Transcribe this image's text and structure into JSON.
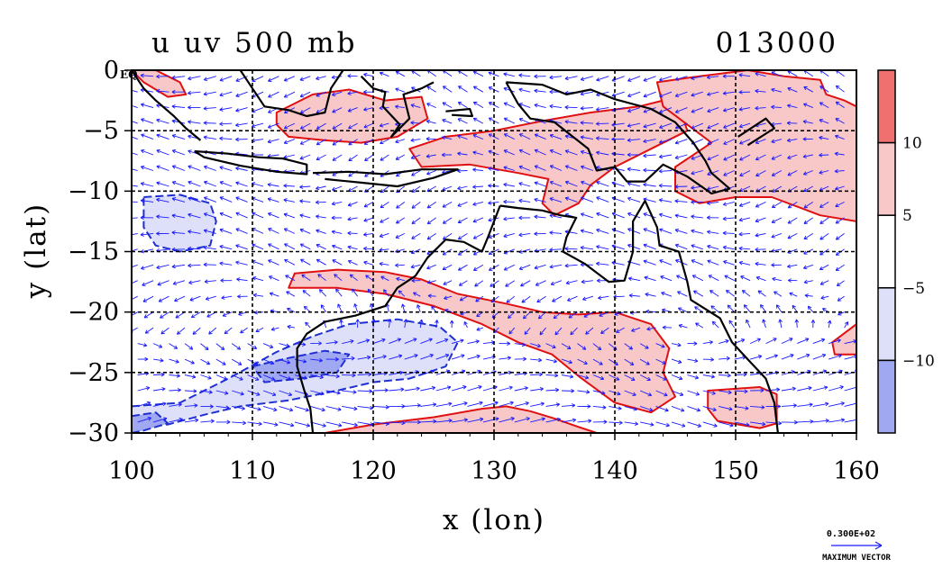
{
  "chart_data": {
    "type": "heatmap",
    "title_left": "u uv 500 mb",
    "title_right": "013000",
    "xlabel": "x (lon)",
    "ylabel": "y (lat)",
    "xlim": [
      100,
      160
    ],
    "ylim": [
      -30,
      0
    ],
    "x_ticks": [
      100,
      110,
      120,
      130,
      140,
      150,
      160
    ],
    "x_tick_labels": [
      "100",
      "110",
      "120",
      "130",
      "140",
      "150",
      "160"
    ],
    "y_ticks": [
      0,
      -5,
      -10,
      -15,
      -20,
      -25,
      -30
    ],
    "y_tick_labels": [
      "0",
      "−5",
      "−10",
      "−15",
      "−20",
      "−25",
      "−30"
    ],
    "eq_label": "EQ",
    "grid": true,
    "colorbar": {
      "position": "right",
      "levels": [
        {
          "color": "#f07070",
          "from": 10,
          "to": 15
        },
        {
          "color": "#f8c8c8",
          "from": 5,
          "to": 10
        },
        {
          "color": "#ffffff",
          "from": -5,
          "to": 5
        },
        {
          "color": "#dde0f8",
          "from": -10,
          "to": -5
        },
        {
          "color": "#9fa8f0",
          "from": -15,
          "to": -10
        }
      ],
      "tick_values": [
        10,
        5,
        -5,
        -10
      ],
      "labels": [
        "10",
        "5",
        "−5",
        "−10"
      ]
    },
    "contour_colors": {
      "positive": "#e01010",
      "negative": "#2030d0",
      "coast": "#000000"
    },
    "vector_color": "#1a1aff",
    "max_vector": {
      "value_label": "0.300E+02",
      "caption": "MAXIMUM VECTOR"
    },
    "regions": [
      {
        "sign": "positive",
        "level": 1,
        "points": [
          [
            100,
            0
          ],
          [
            102,
            0
          ],
          [
            104,
            -1
          ],
          [
            104.5,
            -2
          ],
          [
            103,
            -2.2
          ],
          [
            102,
            -1.6
          ],
          [
            101,
            -1
          ]
        ]
      },
      {
        "sign": "positive",
        "level": 1,
        "points": [
          [
            112,
            -3.5
          ],
          [
            115,
            -2
          ],
          [
            118,
            -1.6
          ],
          [
            121,
            -2.5
          ],
          [
            124,
            -2.2
          ],
          [
            124.5,
            -4
          ],
          [
            122,
            -5.5
          ],
          [
            119,
            -6
          ],
          [
            116,
            -5.8
          ],
          [
            113,
            -5.5
          ],
          [
            112,
            -4.5
          ]
        ]
      },
      {
        "sign": "positive",
        "level": 1,
        "points": [
          [
            123,
            -6.5
          ],
          [
            126,
            -5.5
          ],
          [
            130,
            -5
          ],
          [
            134,
            -4.2
          ],
          [
            138,
            -3.5
          ],
          [
            142,
            -3
          ],
          [
            144,
            -2.5
          ],
          [
            145.5,
            -3.5
          ],
          [
            146,
            -5
          ],
          [
            143,
            -6.5
          ],
          [
            140,
            -8
          ],
          [
            138,
            -9.5
          ],
          [
            137,
            -11
          ],
          [
            135,
            -12
          ],
          [
            134,
            -11
          ],
          [
            134.5,
            -9
          ],
          [
            132,
            -8.5
          ],
          [
            128,
            -7.8
          ],
          [
            124,
            -8
          ]
        ]
      },
      {
        "sign": "positive",
        "level": 1,
        "points": [
          [
            143.5,
            -1
          ],
          [
            147,
            -0.5
          ],
          [
            151,
            0
          ],
          [
            154,
            -0.5
          ],
          [
            157,
            -0.8
          ],
          [
            157.5,
            -2
          ],
          [
            159,
            -2.5
          ],
          [
            160,
            -3
          ],
          [
            160,
            -12.5
          ],
          [
            157,
            -12
          ],
          [
            153,
            -10.5
          ],
          [
            150,
            -10.5
          ],
          [
            147,
            -11
          ],
          [
            145,
            -10
          ],
          [
            145,
            -8
          ],
          [
            148,
            -6
          ],
          [
            146,
            -4.5
          ],
          [
            144,
            -3
          ]
        ]
      },
      {
        "sign": "positive",
        "level": 1,
        "points": [
          [
            113.5,
            -16.8
          ],
          [
            117,
            -16.5
          ],
          [
            121,
            -16.7
          ],
          [
            124,
            -17.3
          ],
          [
            127,
            -18.5
          ],
          [
            131,
            -19.3
          ],
          [
            134,
            -20
          ],
          [
            137,
            -20.2
          ],
          [
            140,
            -20
          ],
          [
            143,
            -21
          ],
          [
            144.5,
            -23
          ],
          [
            144,
            -25
          ],
          [
            145,
            -27
          ],
          [
            143,
            -28.3
          ],
          [
            140,
            -27.5
          ],
          [
            137,
            -25.3
          ],
          [
            134.8,
            -23.5
          ],
          [
            132,
            -22.5
          ],
          [
            129,
            -21
          ],
          [
            125,
            -19.5
          ],
          [
            121,
            -18.5
          ],
          [
            117,
            -18
          ],
          [
            113,
            -18
          ]
        ]
      },
      {
        "sign": "positive",
        "level": 1,
        "points": [
          [
            116,
            -30
          ],
          [
            120,
            -29.3
          ],
          [
            125,
            -28.7
          ],
          [
            129,
            -28
          ],
          [
            131,
            -27.8
          ],
          [
            133,
            -28.2
          ],
          [
            135,
            -28.8
          ],
          [
            137,
            -29.5
          ],
          [
            138.5,
            -30
          ]
        ]
      },
      {
        "sign": "positive",
        "level": 1,
        "points": [
          [
            147.7,
            -26.5
          ],
          [
            152,
            -26.2
          ],
          [
            153.4,
            -26.8
          ],
          [
            153.4,
            -29.2
          ],
          [
            152,
            -29.6
          ],
          [
            148.5,
            -29
          ],
          [
            147.7,
            -28
          ]
        ]
      },
      {
        "sign": "positive",
        "level": 1,
        "points": [
          [
            158,
            -22.5
          ],
          [
            160,
            -21
          ],
          [
            160,
            -23.5
          ],
          [
            158.2,
            -23.5
          ]
        ]
      },
      {
        "sign": "negative",
        "level": 1,
        "points": [
          [
            101,
            -10.5
          ],
          [
            104,
            -10.3
          ],
          [
            106.5,
            -11
          ],
          [
            107,
            -12.5
          ],
          [
            106.5,
            -14.5
          ],
          [
            104,
            -15
          ],
          [
            102,
            -14.5
          ],
          [
            101,
            -13
          ]
        ]
      },
      {
        "sign": "negative",
        "level": 1,
        "points": [
          [
            100,
            -27.8
          ],
          [
            104,
            -27.5
          ],
          [
            108,
            -25.5
          ],
          [
            112,
            -23.3
          ],
          [
            115,
            -22
          ],
          [
            118,
            -21
          ],
          [
            122,
            -20.6
          ],
          [
            125.5,
            -21.2
          ],
          [
            127,
            -22.5
          ],
          [
            126,
            -24.5
          ],
          [
            123,
            -25.5
          ],
          [
            120,
            -25.8
          ],
          [
            117,
            -26.5
          ],
          [
            113,
            -27.3
          ],
          [
            109,
            -27.8
          ],
          [
            106,
            -28.5
          ],
          [
            103,
            -29.3
          ],
          [
            100,
            -29.5
          ]
        ]
      },
      {
        "sign": "negative",
        "level": 2,
        "points": [
          [
            110,
            -24.5
          ],
          [
            113,
            -23.8
          ],
          [
            116,
            -23.2
          ],
          [
            118,
            -23.5
          ],
          [
            117,
            -25
          ],
          [
            114,
            -25.5
          ],
          [
            111,
            -25.8
          ]
        ]
      },
      {
        "sign": "negative",
        "level": 2,
        "points": [
          [
            100,
            -28.6
          ],
          [
            102,
            -28.3
          ],
          [
            103,
            -29.2
          ],
          [
            101,
            -29.8
          ],
          [
            100,
            -30
          ]
        ]
      }
    ],
    "coastlines": [
      [
        [
          100,
          0
        ],
        [
          101,
          -1.5
        ],
        [
          102,
          -2.5
        ],
        [
          103.5,
          -3.8
        ],
        [
          104.5,
          -4.8
        ],
        [
          105.7,
          -5.8
        ]
      ],
      [
        [
          105.2,
          -6.7
        ],
        [
          108,
          -6.9
        ],
        [
          110.5,
          -7.2
        ],
        [
          112.5,
          -7.3
        ],
        [
          114.5,
          -7.8
        ],
        [
          114.5,
          -8.6
        ],
        [
          112,
          -8.4
        ],
        [
          109,
          -7.9
        ],
        [
          106,
          -7.2
        ],
        [
          105.2,
          -6.7
        ]
      ],
      [
        [
          115,
          -8.5
        ],
        [
          118,
          -8.4
        ],
        [
          121,
          -8.6
        ],
        [
          124,
          -8.2
        ],
        [
          127,
          -8.2
        ],
        [
          125,
          -8.9
        ],
        [
          122,
          -9.6
        ],
        [
          119,
          -9.3
        ],
        [
          116,
          -9
        ]
      ],
      [
        [
          109,
          0
        ],
        [
          110,
          -1.5
        ],
        [
          111,
          -3
        ],
        [
          113,
          -3.3
        ],
        [
          114.5,
          -3.8
        ],
        [
          116,
          -3.5
        ],
        [
          116.5,
          -1.5
        ],
        [
          117.5,
          0
        ]
      ],
      [
        [
          119,
          -0.5
        ],
        [
          120,
          -1.5
        ],
        [
          121,
          -1.8
        ],
        [
          120.8,
          -3
        ],
        [
          122.2,
          -4.5
        ],
        [
          121.5,
          -5.5
        ],
        [
          123,
          -4
        ],
        [
          122.5,
          -2
        ],
        [
          124,
          -1.5
        ],
        [
          125,
          -1
        ]
      ],
      [
        [
          126,
          -3.4
        ],
        [
          128,
          -3.2
        ],
        [
          128.2,
          -3.8
        ],
        [
          126.5,
          -3.7
        ]
      ],
      [
        [
          131,
          -1
        ],
        [
          134,
          -1.2
        ],
        [
          136,
          -2
        ],
        [
          138,
          -1.6
        ],
        [
          140,
          -2.4
        ],
        [
          143,
          -3.2
        ],
        [
          145,
          -4.3
        ],
        [
          146.5,
          -6
        ],
        [
          147.5,
          -7.5
        ],
        [
          148,
          -8.5
        ],
        [
          149.5,
          -9.8
        ],
        [
          148,
          -10.2
        ],
        [
          146,
          -8.8
        ],
        [
          144,
          -7.8
        ],
        [
          142.5,
          -9.2
        ],
        [
          141,
          -9.2
        ],
        [
          140,
          -8
        ],
        [
          138.5,
          -8.3
        ],
        [
          137.8,
          -6.5
        ],
        [
          135,
          -4.3
        ],
        [
          133,
          -4
        ],
        [
          132,
          -2.8
        ],
        [
          131,
          -1
        ]
      ],
      [
        [
          150.2,
          -5.5
        ],
        [
          152.5,
          -4
        ],
        [
          153.2,
          -4.8
        ],
        [
          151,
          -6.2
        ]
      ],
      [
        [
          130.5,
          -11.2
        ],
        [
          132,
          -11.4
        ],
        [
          134,
          -11.6
        ],
        [
          135.5,
          -12
        ],
        [
          136.8,
          -12.2
        ],
        [
          136,
          -13.8
        ],
        [
          135.7,
          -15
        ],
        [
          137.5,
          -16
        ],
        [
          139.5,
          -17.5
        ],
        [
          140.8,
          -17.4
        ],
        [
          141.5,
          -15
        ],
        [
          141.5,
          -12.5
        ],
        [
          142.5,
          -10.8
        ],
        [
          143.5,
          -13
        ],
        [
          143.7,
          -14.5
        ],
        [
          145.3,
          -15
        ],
        [
          146,
          -17.5
        ],
        [
          146.3,
          -19
        ],
        [
          148.7,
          -20.5
        ],
        [
          149.7,
          -22.5
        ],
        [
          151,
          -23.9
        ],
        [
          152.5,
          -25.5
        ],
        [
          153.2,
          -27.5
        ],
        [
          153.5,
          -30
        ]
      ],
      [
        [
          130.5,
          -11.2
        ],
        [
          129.5,
          -13.8
        ],
        [
          129,
          -15
        ],
        [
          127.5,
          -14.2
        ],
        [
          126,
          -14
        ],
        [
          124.5,
          -15.5
        ],
        [
          123.5,
          -17
        ],
        [
          122,
          -18
        ],
        [
          121,
          -19.5
        ],
        [
          118.5,
          -20.3
        ],
        [
          116,
          -20.8
        ],
        [
          114.5,
          -21.8
        ],
        [
          113.7,
          -23
        ],
        [
          113.7,
          -24.5
        ],
        [
          114.3,
          -26.5
        ],
        [
          114.8,
          -28
        ],
        [
          115,
          -30
        ]
      ]
    ]
  }
}
